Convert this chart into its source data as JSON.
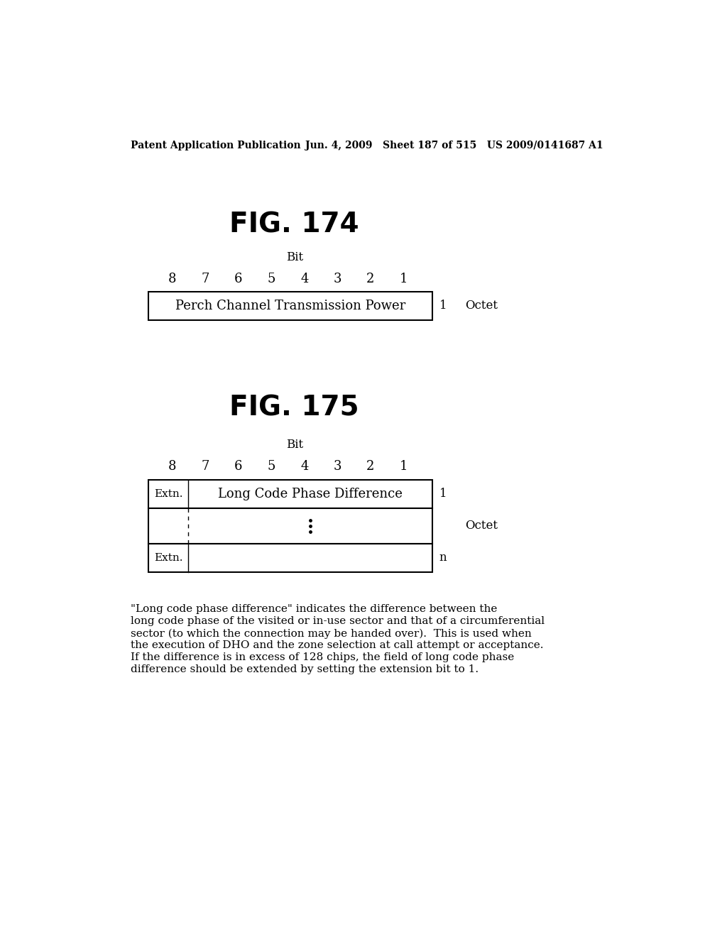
{
  "bg_color": "#ffffff",
  "header_left": "Patent Application Publication",
  "header_right": "Jun. 4, 2009   Sheet 187 of 515   US 2009/0141687 A1",
  "fig174_title": "FIG. 174",
  "fig175_title": "FIG. 175",
  "bit_label": "Bit",
  "bit_numbers": [
    "8",
    "7",
    "6",
    "5",
    "4",
    "3",
    "2",
    "1"
  ],
  "fig174_row1_label": "Perch Channel Transmission Power",
  "fig174_row1_right": "1",
  "fig174_octet": "Octet",
  "fig175_row1_left": "Extn.",
  "fig175_row1_center": "Long Code Phase Difference",
  "fig175_row1_right": "1",
  "fig175_row3_left": "Extn.",
  "fig175_row3_right": "n",
  "fig175_octet": "Octet",
  "footnote_line1": "\"Long code phase difference\" indicates the difference between the",
  "footnote_line2": "long code phase of the visited or in-use sector and that of a circumferential",
  "footnote_line3": "sector (to which the connection may be handed over).  This is used when",
  "footnote_line4": "the execution of DHO and the zone selection at call attempt or acceptance.",
  "footnote_line5": "If the difference is in excess of 128 chips, the field of long code phase",
  "footnote_line6": "difference should be extended by setting the extension bit to 1."
}
